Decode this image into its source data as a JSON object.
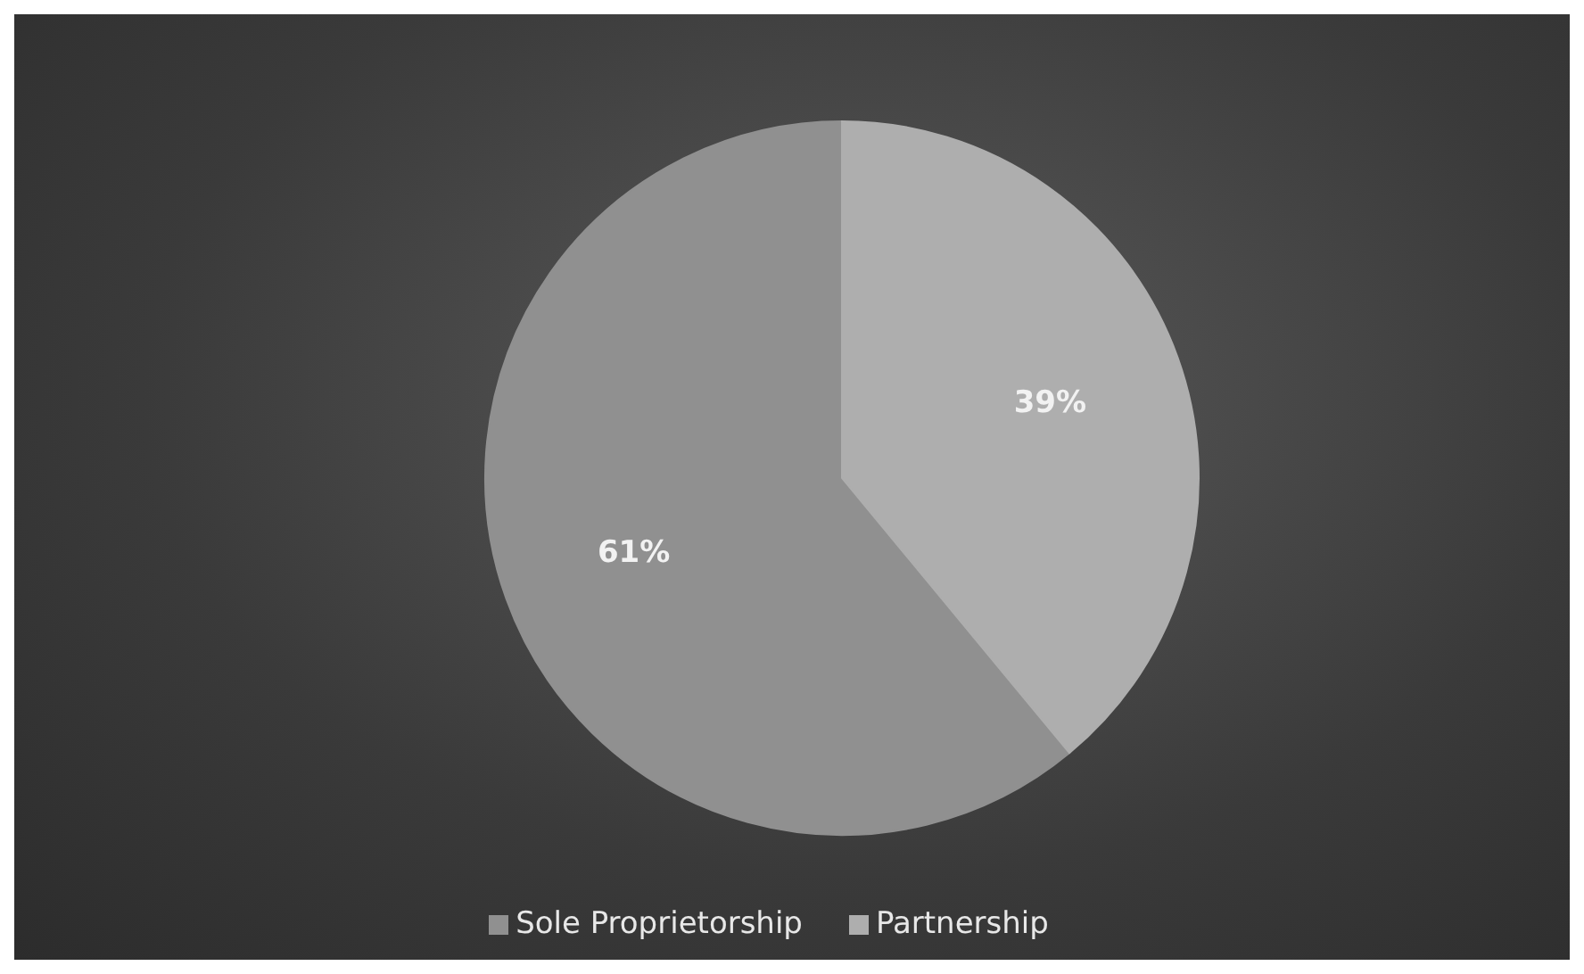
{
  "chart_data": {
    "type": "pie",
    "categories": [
      "Sole Proprietorship",
      "Partnership"
    ],
    "values": [
      61,
      39
    ],
    "value_labels": [
      "61%",
      "39%"
    ],
    "colors": [
      "#909090",
      "#aeaeae"
    ],
    "legend": "bottom"
  }
}
